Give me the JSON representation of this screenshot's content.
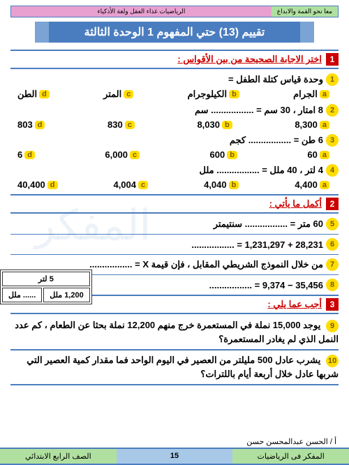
{
  "banner": {
    "right": "معا نحو القمة والابداع",
    "left": "الرياضيات غذاء العقل ولغة الأذكياء"
  },
  "title": "تقييم (13) حتي المفهوم 1 الوحدة الثالثة",
  "s1": {
    "num": "1",
    "title": "اختر الاجابة الصحيحة من بين الأقواس :",
    "q1": {
      "n": "1",
      "text": "وحدة قياس كتلة الطفل =",
      "a": "الجرام",
      "b": "الكيلوجرام",
      "c": "المتر",
      "d": "الطن"
    },
    "q2": {
      "n": "2",
      "text": "8 امتار ، 30 سم = ................. سم",
      "a": "8,300",
      "b": "8,030",
      "c": "830",
      "d": "803"
    },
    "q3": {
      "n": "3",
      "text": "6 طن = ................. كجم",
      "a": "60",
      "b": "600",
      "c": "6,000",
      "d": "6"
    },
    "q4": {
      "n": "4",
      "text": "4 لتر ، 40 ملل = ................. ملل",
      "a": "4,400",
      "b": "4,040",
      "c": "4,004",
      "d": "40,400"
    }
  },
  "s2": {
    "num": "2",
    "title": "أكمل ما يأتي :",
    "q5": {
      "n": "5",
      "text": "60 متر = ................. سنتيمتر"
    },
    "q6": {
      "n": "6",
      "text": "28,231 + 1,231,297 = ................."
    },
    "q7": {
      "n": "7",
      "text": "من خلال النموذج الشريطي المقابل ، فإن قيمة X = ................."
    },
    "q8": {
      "n": "8",
      "text": "35,456 − 9,374 = ................."
    }
  },
  "s3": {
    "num": "3",
    "title": "أجب عما يلي :",
    "q9": {
      "n": "9",
      "text": "يوجد 15,000 نملة في المستعمرة خرج منهم 12,200 نملة بحثا عن الطعام ، كم عدد النمل الذي لم يغادر المستعمرة؟"
    },
    "q10": {
      "n": "10",
      "text": "يشرب عادل 500 مليلتر من العصير في اليوم الواحد فما مقدار كمية العصير التي شربها عادل خلال أربعة أيام باللترات؟"
    }
  },
  "sidebox": {
    "top": "5 لتر",
    "bl": "1,200 ملل",
    "br": "...... ملل"
  },
  "author": "أ / الحسن عبدالمحسن حسن",
  "footer": {
    "right": "المفكر فى الرياضيات",
    "page": "15",
    "left": "الصف الرابع الابتدائي"
  },
  "choices": {
    "a": "a",
    "b": "b",
    "c": "c",
    "d": "d"
  }
}
